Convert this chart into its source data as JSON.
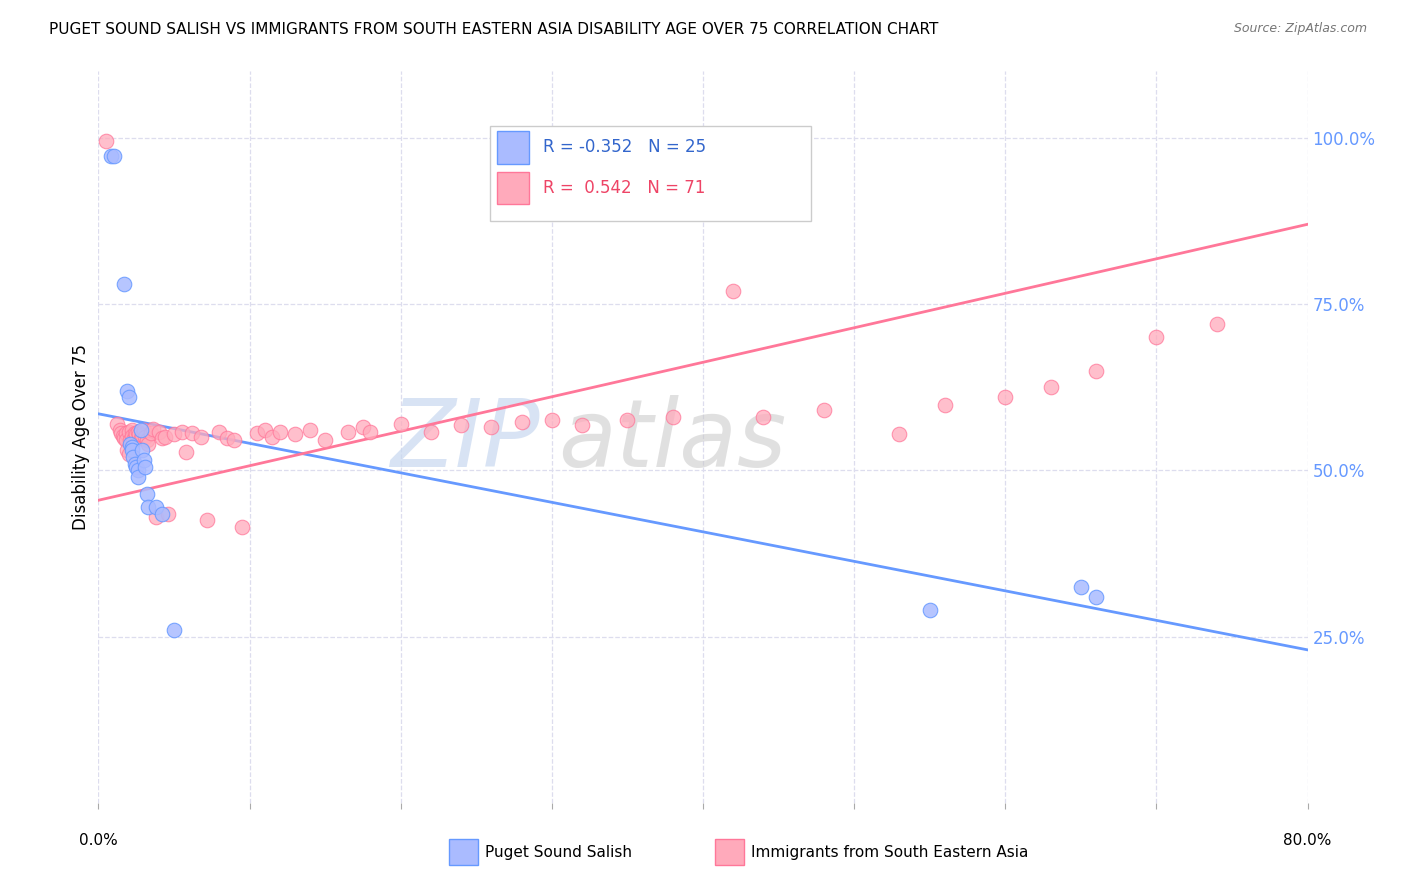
{
  "title": "PUGET SOUND SALISH VS IMMIGRANTS FROM SOUTH EASTERN ASIA DISABILITY AGE OVER 75 CORRELATION CHART",
  "source": "Source: ZipAtlas.com",
  "ylabel": "Disability Age Over 75",
  "series1_name": "Puget Sound Salish",
  "series2_name": "Immigrants from South Eastern Asia",
  "blue_color": "#6699ff",
  "blue_fill": "#aabbff",
  "pink_color": "#ff7799",
  "pink_fill": "#ffaabb",
  "right_ytick_vals": [
    0.25,
    0.5,
    0.75,
    1.0
  ],
  "right_ytick_labels": [
    "25.0%",
    "50.0%",
    "75.0%",
    "100.0%"
  ],
  "xlim": [
    0.0,
    0.8
  ],
  "ylim": [
    0.0,
    1.1
  ],
  "blue_trend_y0": 0.585,
  "blue_trend_y1": 0.23,
  "pink_trend_y0": 0.455,
  "pink_trend_y1": 0.87,
  "xtick_vals": [
    0.0,
    0.1,
    0.2,
    0.3,
    0.4,
    0.5,
    0.6,
    0.7,
    0.8
  ],
  "grid_color": "#ddddee",
  "background_color": "#ffffff",
  "watermark_zip_color": "#c8d8f0",
  "watermark_atlas_color": "#c8c8c8",
  "blue_x": [
    0.008,
    0.01,
    0.017,
    0.019,
    0.02,
    0.021,
    0.022,
    0.022,
    0.023,
    0.024,
    0.025,
    0.026,
    0.026,
    0.028,
    0.029,
    0.03,
    0.031,
    0.032,
    0.033,
    0.038,
    0.042,
    0.05,
    0.55,
    0.65,
    0.66
  ],
  "blue_y": [
    0.972,
    0.972,
    0.78,
    0.62,
    0.61,
    0.54,
    0.535,
    0.53,
    0.52,
    0.51,
    0.505,
    0.5,
    0.49,
    0.56,
    0.53,
    0.515,
    0.505,
    0.465,
    0.445,
    0.445,
    0.435,
    0.26,
    0.29,
    0.325,
    0.31
  ],
  "pink_x": [
    0.005,
    0.012,
    0.014,
    0.015,
    0.016,
    0.017,
    0.018,
    0.018,
    0.019,
    0.02,
    0.02,
    0.021,
    0.022,
    0.022,
    0.023,
    0.024,
    0.025,
    0.026,
    0.027,
    0.028,
    0.029,
    0.03,
    0.031,
    0.032,
    0.033,
    0.035,
    0.036,
    0.038,
    0.04,
    0.042,
    0.044,
    0.046,
    0.05,
    0.055,
    0.058,
    0.062,
    0.068,
    0.072,
    0.08,
    0.085,
    0.09,
    0.095,
    0.105,
    0.11,
    0.115,
    0.12,
    0.13,
    0.14,
    0.15,
    0.165,
    0.175,
    0.18,
    0.2,
    0.22,
    0.24,
    0.26,
    0.28,
    0.3,
    0.32,
    0.35,
    0.38,
    0.42,
    0.44,
    0.48,
    0.53,
    0.56,
    0.6,
    0.63,
    0.66,
    0.7,
    0.74
  ],
  "pink_y": [
    0.995,
    0.57,
    0.56,
    0.556,
    0.552,
    0.548,
    0.556,
    0.545,
    0.53,
    0.558,
    0.525,
    0.545,
    0.56,
    0.552,
    0.546,
    0.556,
    0.554,
    0.558,
    0.555,
    0.548,
    0.553,
    0.56,
    0.55,
    0.545,
    0.54,
    0.556,
    0.562,
    0.43,
    0.558,
    0.548,
    0.55,
    0.435,
    0.555,
    0.558,
    0.528,
    0.556,
    0.55,
    0.426,
    0.558,
    0.548,
    0.545,
    0.415,
    0.556,
    0.56,
    0.55,
    0.558,
    0.555,
    0.56,
    0.545,
    0.558,
    0.565,
    0.558,
    0.57,
    0.558,
    0.568,
    0.565,
    0.572,
    0.575,
    0.568,
    0.575,
    0.58,
    0.77,
    0.58,
    0.59,
    0.555,
    0.598,
    0.61,
    0.625,
    0.65,
    0.7,
    0.72
  ]
}
